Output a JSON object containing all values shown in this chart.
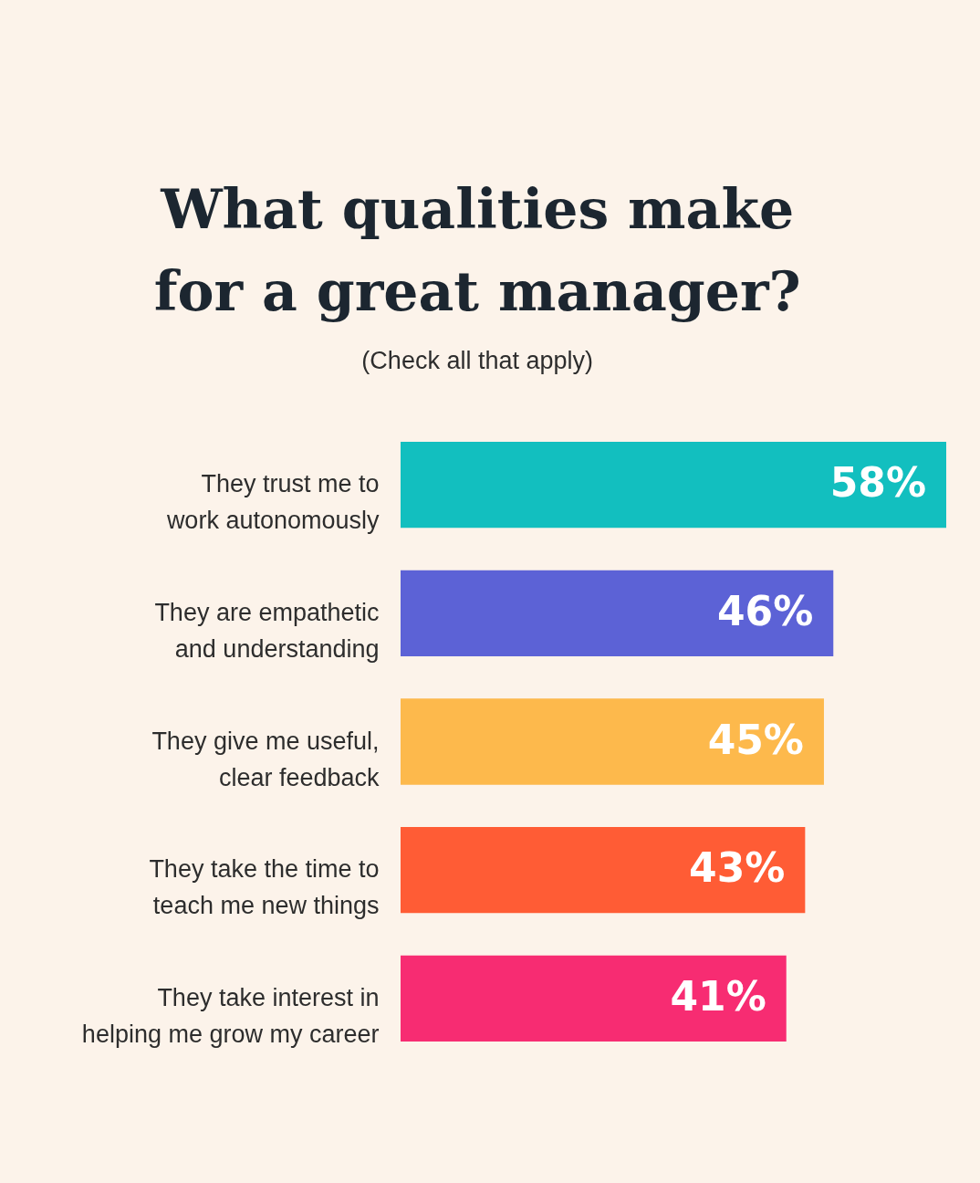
{
  "chart_data": {
    "type": "bar",
    "orientation": "horizontal",
    "title": "What qualities make for a great manager?",
    "subtitle": "(Check all that apply)",
    "categories": [
      "They trust me to work autonomously",
      "They are empathetic and understanding",
      "They give me useful, clear feedback",
      "They take the time to teach me new things",
      "They take interest in helping me grow my career"
    ],
    "values": [
      58,
      46,
      45,
      43,
      41
    ],
    "value_labels": [
      "58%",
      "46%",
      "45%",
      "43%",
      "41%"
    ],
    "colors": [
      "#12bfbf",
      "#5c62d6",
      "#fdb94c",
      "#ff5c35",
      "#f72c72"
    ]
  }
}
